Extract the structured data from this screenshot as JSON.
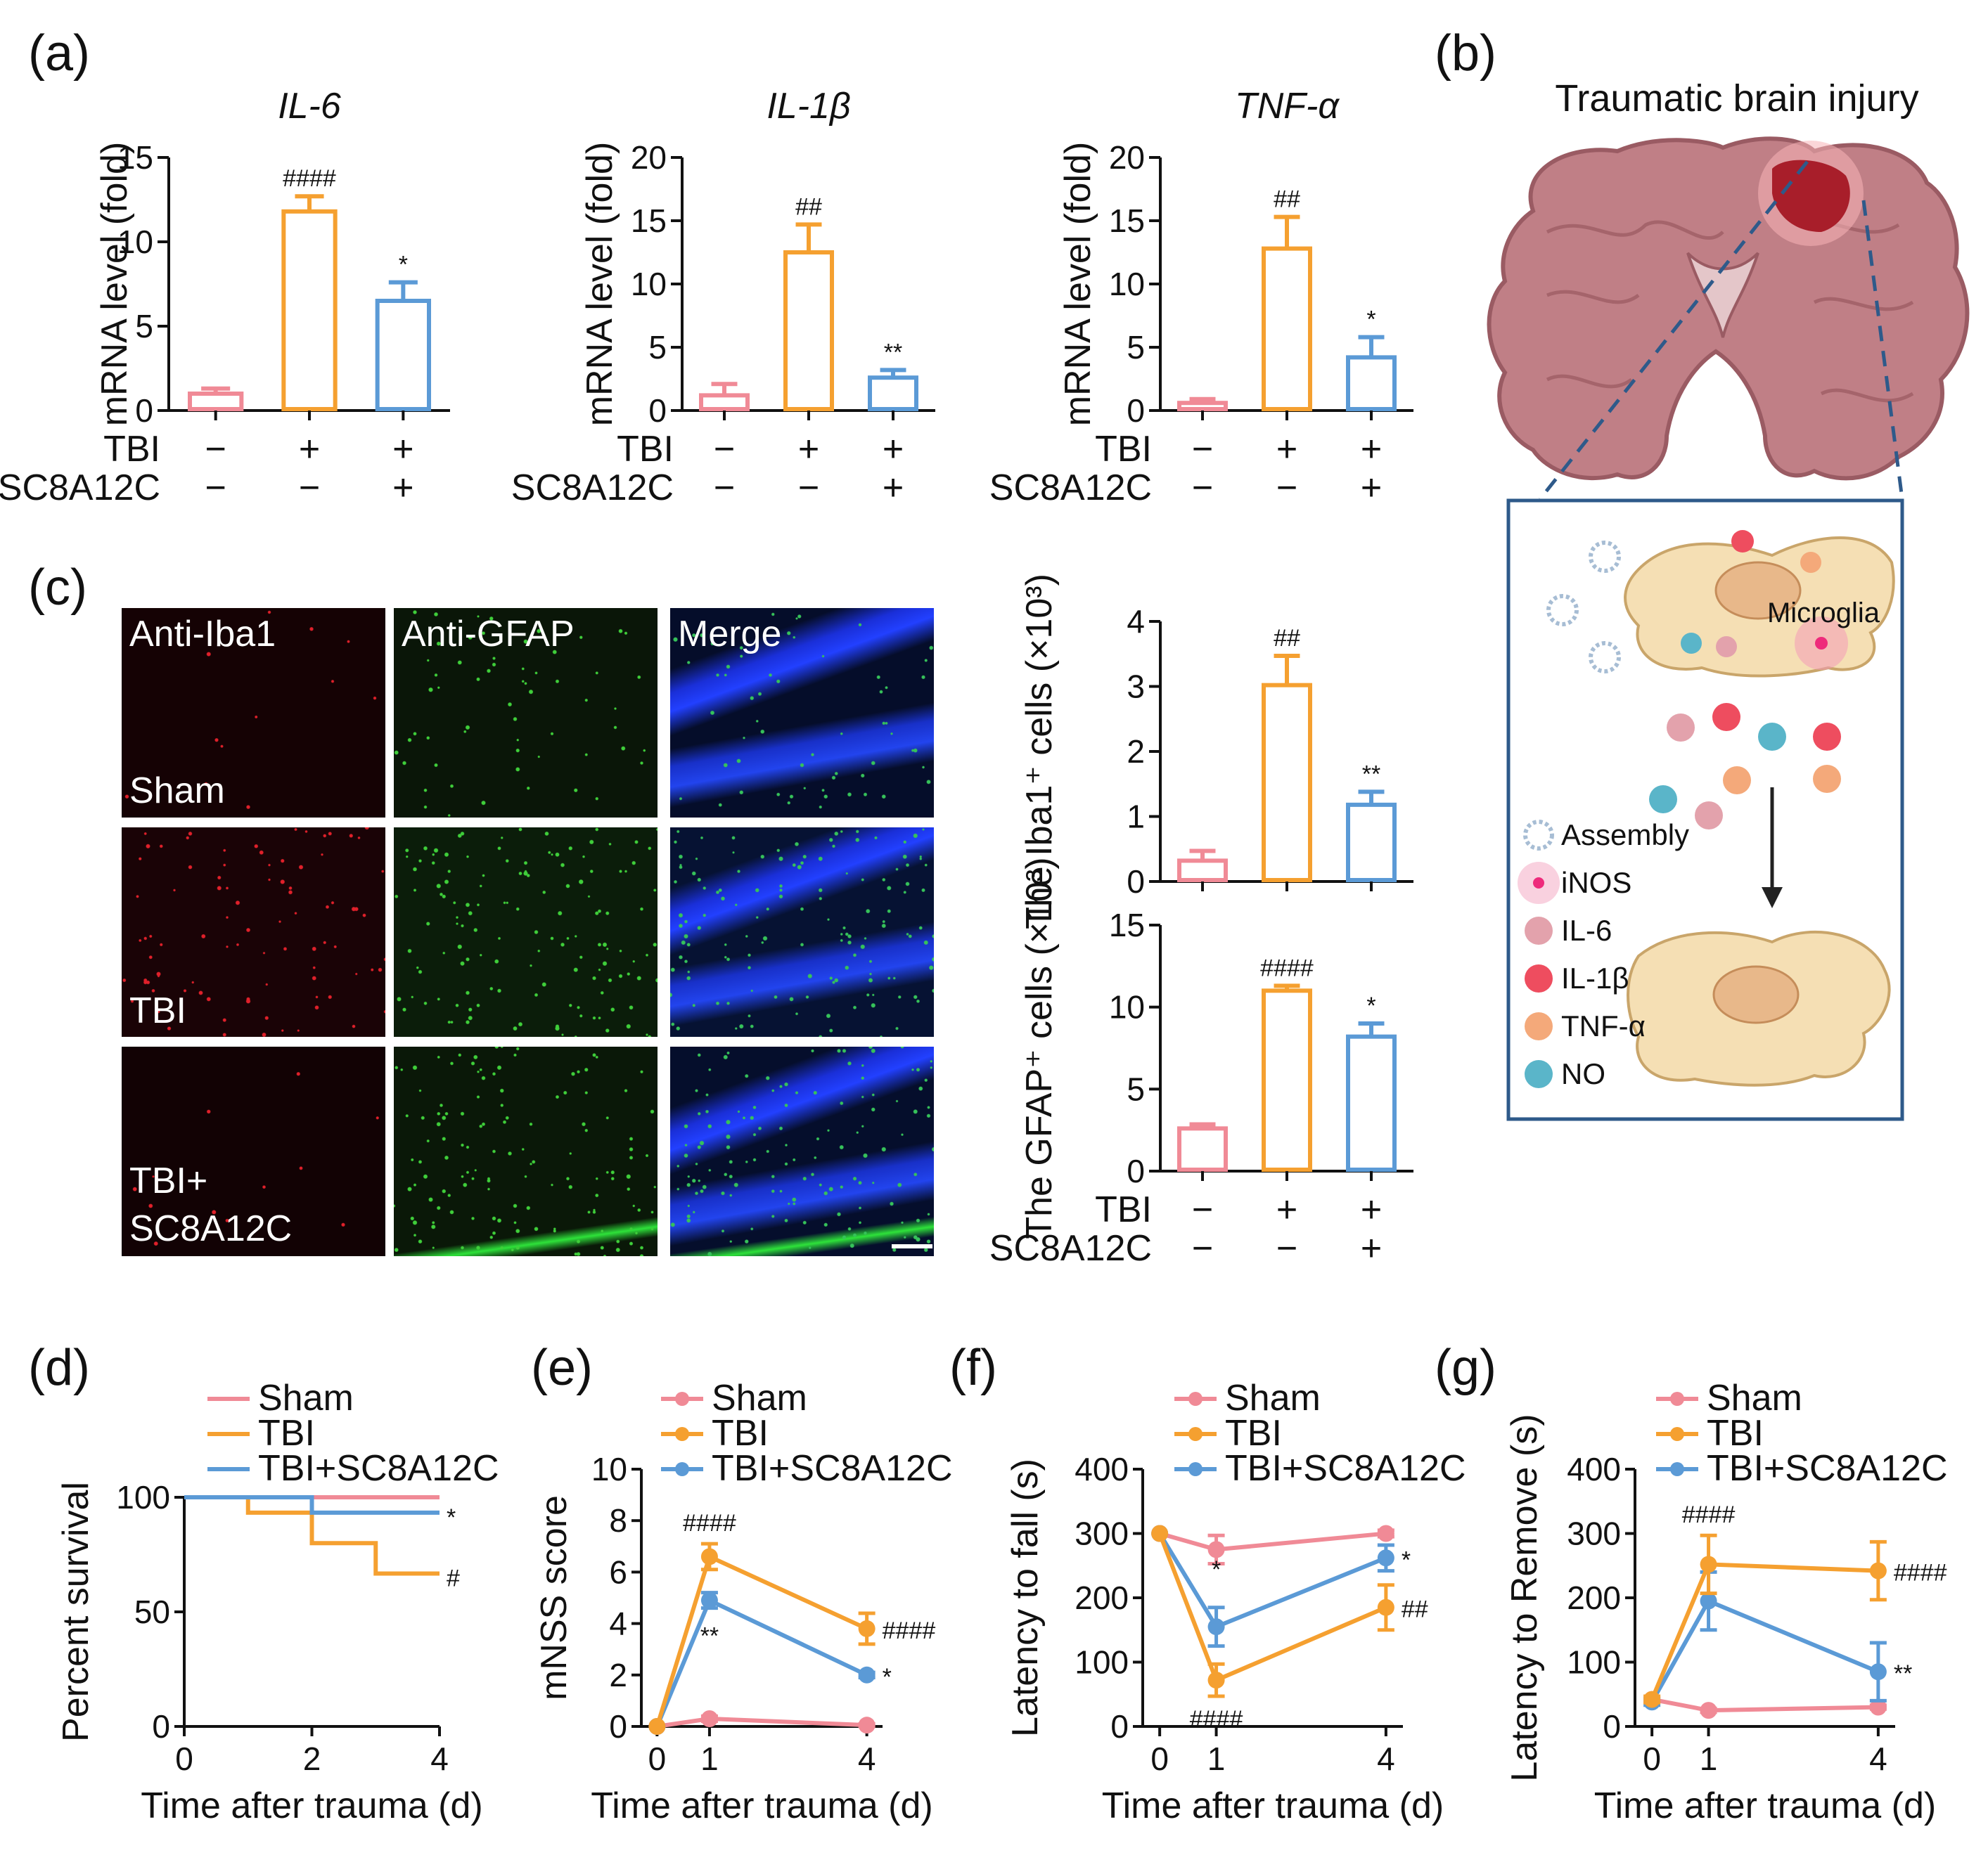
{
  "colors": {
    "sham": "#f08a96",
    "tbi": "#f5a030",
    "treat": "#5b9ad6",
    "axis": "#111111"
  },
  "panels": {
    "a": "(a)",
    "b": "(b)",
    "c": "(c)",
    "d": "(d)",
    "e": "(e)",
    "f": "(f)",
    "g": "(g)"
  },
  "groups": {
    "row1": {
      "label": "TBI",
      "values": [
        "−",
        "+",
        "+"
      ]
    },
    "row2": {
      "label": "SC8A12C",
      "values": [
        "−",
        "−",
        "+"
      ]
    }
  },
  "chart_data": [
    {
      "id": "a1",
      "type": "bar",
      "title": "IL-6",
      "ylabel": "mRNA level (fold)",
      "ylim": [
        0,
        15
      ],
      "yticks": [
        0,
        5,
        10,
        15
      ],
      "values": [
        1.0,
        11.8,
        6.5
      ],
      "errors": [
        0.3,
        0.9,
        1.1
      ],
      "sig": [
        "",
        "####",
        "*"
      ]
    },
    {
      "id": "a2",
      "type": "bar",
      "title": "IL-1β",
      "ylabel": "mRNA level (fold)",
      "ylim": [
        0,
        20
      ],
      "yticks": [
        0,
        5,
        10,
        15,
        20
      ],
      "values": [
        1.2,
        12.5,
        2.6
      ],
      "errors": [
        0.9,
        2.2,
        0.6
      ],
      "sig": [
        "",
        "##",
        "**"
      ]
    },
    {
      "id": "a3",
      "type": "bar",
      "title": "TNF-α",
      "ylabel": "mRNA level (fold)",
      "ylim": [
        0,
        20
      ],
      "yticks": [
        0,
        5,
        10,
        15,
        20
      ],
      "values": [
        0.6,
        12.8,
        4.2
      ],
      "errors": [
        0.3,
        2.5,
        1.6
      ],
      "sig": [
        "",
        "##",
        "*"
      ]
    },
    {
      "id": "c1",
      "type": "bar",
      "title": "",
      "ylabel": "The Iba1⁺ cells (×10³)",
      "ylim": [
        0,
        4
      ],
      "yticks": [
        0,
        1,
        2,
        3,
        4
      ],
      "values": [
        0.32,
        3.02,
        1.18
      ],
      "errors": [
        0.15,
        0.45,
        0.2
      ],
      "sig": [
        "",
        "##",
        "**"
      ]
    },
    {
      "id": "c2",
      "type": "bar",
      "title": "",
      "ylabel": "The GFAP⁺ cells (×10³)",
      "ylim": [
        0,
        15
      ],
      "yticks": [
        0,
        5,
        10,
        15
      ],
      "values": [
        2.6,
        11.0,
        8.2
      ],
      "errors": [
        0.25,
        0.3,
        0.8
      ],
      "sig": [
        "",
        "####",
        "*"
      ]
    },
    {
      "id": "d",
      "type": "line",
      "subtype": "survival",
      "xlabel": "Time after trauma (d)",
      "ylabel": "Percent survival",
      "xlim": [
        0,
        4
      ],
      "ylim": [
        0,
        100
      ],
      "xticks": [
        0,
        2,
        4
      ],
      "yticks": [
        0,
        50,
        100
      ],
      "series": [
        {
          "name": "Sham",
          "points": [
            [
              0,
              100
            ],
            [
              4,
              100
            ]
          ],
          "sig": ""
        },
        {
          "name": "TBI",
          "points": [
            [
              0,
              100
            ],
            [
              1,
              100
            ],
            [
              1,
              93.3
            ],
            [
              2,
              93.3
            ],
            [
              2,
              80
            ],
            [
              3,
              80
            ],
            [
              3,
              66.7
            ],
            [
              4,
              66.7
            ]
          ],
          "sig": "#"
        },
        {
          "name": "TBI+SC8A12C",
          "points": [
            [
              0,
              100
            ],
            [
              2,
              100
            ],
            [
              2,
              93.3
            ],
            [
              4,
              93.3
            ]
          ],
          "sig": "*"
        }
      ]
    },
    {
      "id": "e",
      "type": "line",
      "xlabel": "Time after trauma (d)",
      "ylabel": "mNSS score",
      "xlim": [
        -0.3,
        4.3
      ],
      "ylim": [
        0,
        10
      ],
      "xticks": [
        0,
        1,
        4
      ],
      "yticks": [
        0,
        2,
        4,
        6,
        8,
        10
      ],
      "series": [
        {
          "name": "Sham",
          "x": [
            0,
            1,
            4
          ],
          "values": [
            0,
            0.3,
            0.05
          ],
          "errors": [
            0,
            0.1,
            0.05
          ],
          "sig": [
            "",
            "",
            ""
          ]
        },
        {
          "name": "TBI",
          "x": [
            0,
            1,
            4
          ],
          "values": [
            0,
            6.6,
            3.8
          ],
          "errors": [
            0,
            0.5,
            0.6
          ],
          "sig": [
            "",
            "####",
            "####"
          ]
        },
        {
          "name": "TBI+SC8A12C",
          "x": [
            0,
            1,
            4
          ],
          "values": [
            0,
            4.9,
            2.0
          ],
          "errors": [
            0,
            0.3,
            0.1
          ],
          "sig": [
            "",
            "**",
            "*"
          ]
        }
      ]
    },
    {
      "id": "f",
      "type": "line",
      "xlabel": "Time after trauma (d)",
      "ylabel": "Latency to fall (s)",
      "xlim": [
        -0.3,
        4.3
      ],
      "ylim": [
        0,
        400
      ],
      "xticks": [
        0,
        1,
        4
      ],
      "yticks": [
        0,
        100,
        200,
        300,
        400
      ],
      "series": [
        {
          "name": "Sham",
          "x": [
            0,
            1,
            4
          ],
          "values": [
            300,
            275,
            300
          ],
          "errors": [
            0,
            22,
            5
          ],
          "sig": [
            "",
            "",
            ""
          ]
        },
        {
          "name": "TBI",
          "x": [
            0,
            1,
            4
          ],
          "values": [
            300,
            72,
            185
          ],
          "errors": [
            0,
            25,
            35
          ],
          "sig": [
            "",
            "####",
            "##"
          ]
        },
        {
          "name": "TBI+SC8A12C",
          "x": [
            0,
            1,
            4
          ],
          "values": [
            300,
            155,
            262
          ],
          "errors": [
            0,
            30,
            20
          ],
          "sig": [
            "",
            "*",
            "*"
          ]
        }
      ]
    },
    {
      "id": "g",
      "type": "line",
      "xlabel": "Time after trauma (d)",
      "ylabel": "Latency to Remove (s)",
      "xlim": [
        -0.3,
        4.3
      ],
      "ylim": [
        0,
        400
      ],
      "xticks": [
        0,
        1,
        4
      ],
      "yticks": [
        0,
        100,
        200,
        300,
        400
      ],
      "series": [
        {
          "name": "Sham",
          "x": [
            0,
            1,
            4
          ],
          "values": [
            42,
            25,
            30
          ],
          "errors": [
            3,
            3,
            3
          ],
          "sig": [
            "",
            "",
            ""
          ]
        },
        {
          "name": "TBI",
          "x": [
            0,
            1,
            4
          ],
          "values": [
            42,
            252,
            242
          ],
          "errors": [
            5,
            45,
            45
          ],
          "sig": [
            "",
            "####",
            "####"
          ]
        },
        {
          "name": "TBI+SC8A12C",
          "x": [
            0,
            1,
            4
          ],
          "values": [
            38,
            195,
            85
          ],
          "errors": [
            5,
            45,
            45
          ],
          "sig": [
            "",
            "",
            "**"
          ]
        }
      ]
    }
  ],
  "micrographs": {
    "columns": [
      "Anti-Iba1",
      "Anti-GFAP",
      "Merge"
    ],
    "rows": [
      "Sham",
      "TBI",
      "TBI+",
      "SC8A12C"
    ]
  },
  "schematic": {
    "title": "Traumatic brain injury",
    "microglia_label": "Microglia",
    "legend": [
      "Assembly",
      "iNOS",
      "IL-6",
      "IL-1β",
      "TNF-α",
      "NO"
    ],
    "legend_colors": [
      "#c8d6e6",
      "#ee2a7b",
      "#e3a2ac",
      "#ee4d5f",
      "#f4a97a",
      "#5ab5c9"
    ]
  }
}
